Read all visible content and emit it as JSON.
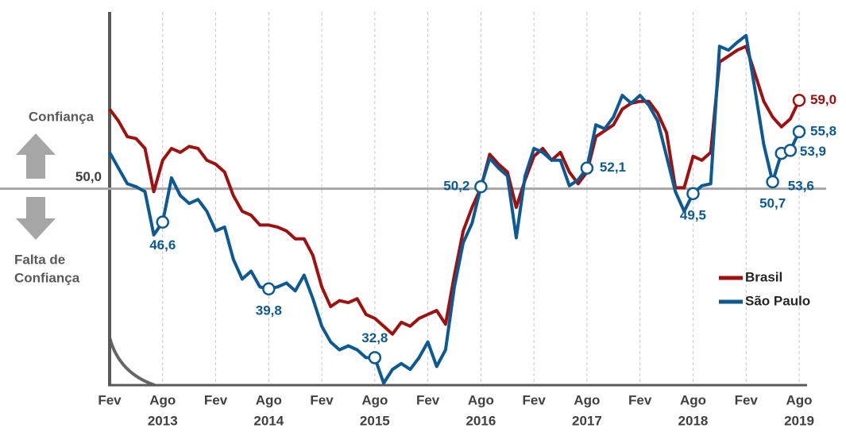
{
  "chart_data": {
    "type": "line",
    "categories": [
      "Fev",
      null,
      null,
      null,
      null,
      null,
      "Ago",
      null,
      null,
      null,
      null,
      null,
      "Fev",
      null,
      null,
      null,
      null,
      null,
      "Ago",
      null,
      null,
      null,
      null,
      null,
      "Fev",
      null,
      null,
      null,
      null,
      null,
      "Ago",
      null,
      null,
      null,
      null,
      null,
      "Fev",
      null,
      null,
      null,
      null,
      null,
      "Ago",
      null,
      null,
      null,
      null,
      null,
      "Fev",
      null,
      null,
      null,
      null,
      null,
      "Ago",
      null,
      null,
      null,
      null,
      null,
      "Fev",
      null,
      null,
      null,
      null,
      null,
      "Ago",
      null,
      null,
      null,
      null,
      null,
      "Fev",
      null,
      null,
      null,
      null,
      null,
      "Ago"
    ],
    "years": [
      "2013",
      "2014",
      "2015",
      "2016",
      "2017",
      "2018",
      "2019"
    ],
    "ylim": [
      30,
      68
    ],
    "reference": {
      "value": 50,
      "label": "50,0"
    },
    "side_labels": {
      "up": "Confiança",
      "down": [
        "Falta de",
        "Confiança"
      ]
    },
    "grid": true,
    "legend": "right",
    "series": [
      {
        "name": "Brasil",
        "color": "#a10f0f",
        "values": [
          58.1,
          56.9,
          55.3,
          55.1,
          54.1,
          49.7,
          52.9,
          54.1,
          53.7,
          54.3,
          54.1,
          52.9,
          52.5,
          51.7,
          49.3,
          47.7,
          47.3,
          46.3,
          46.3,
          46.1,
          45.7,
          44.9,
          44.9,
          43.2,
          40.0,
          38.0,
          38.6,
          38.4,
          38.8,
          37.2,
          36.8,
          36.0,
          35.2,
          36.4,
          36.0,
          36.8,
          37.2,
          37.6,
          36.2,
          41.2,
          45.7,
          48.1,
          50.1,
          53.5,
          52.5,
          51.7,
          48.1,
          50.9,
          53.3,
          54.1,
          52.9,
          53.7,
          51.7,
          50.5,
          51.7,
          55.3,
          55.9,
          56.5,
          58.1,
          58.7,
          58.9,
          58.9,
          57.7,
          55.7,
          50.1,
          50.1,
          53.3,
          52.9,
          53.7,
          62.9,
          63.5,
          64.1,
          64.5,
          61.7,
          58.9,
          57.3,
          56.3,
          57.1,
          59.0
        ],
        "value_labels": [
          null,
          null,
          null,
          null,
          null,
          null,
          null,
          null,
          null,
          null,
          null,
          null,
          null,
          null,
          null,
          null,
          null,
          null,
          null,
          null,
          null,
          null,
          null,
          null,
          null,
          null,
          null,
          null,
          null,
          null,
          null,
          null,
          null,
          null,
          null,
          null,
          null,
          null,
          null,
          null,
          null,
          null,
          null,
          null,
          null,
          null,
          null,
          null,
          null,
          null,
          null,
          null,
          null,
          null,
          null,
          null,
          null,
          null,
          null,
          null,
          null,
          null,
          null,
          null,
          null,
          null,
          null,
          null,
          null,
          null,
          null,
          null,
          null,
          null,
          null,
          null,
          null,
          null,
          "59,0"
        ]
      },
      {
        "name": "São Paulo",
        "color": "#0b5a94",
        "values": [
          53.7,
          52.1,
          50.5,
          50.2,
          49.7,
          45.3,
          46.6,
          51.1,
          49.3,
          48.5,
          48.9,
          47.7,
          45.7,
          46.1,
          42.8,
          40.8,
          41.6,
          40.0,
          39.8,
          40.0,
          40.4,
          39.6,
          41.2,
          38.8,
          36.0,
          34.4,
          33.6,
          34.0,
          33.6,
          32.8,
          32.8,
          30.2,
          31.6,
          32.2,
          31.6,
          32.8,
          34.4,
          31.9,
          33.6,
          40.0,
          44.5,
          46.5,
          50.2,
          53.1,
          52.1,
          51.3,
          45.0,
          51.3,
          54.1,
          53.7,
          52.9,
          52.9,
          50.3,
          50.9,
          52.1,
          56.5,
          56.1,
          57.3,
          59.5,
          58.7,
          59.5,
          58.5,
          56.9,
          53.3,
          49.7,
          47.7,
          49.5,
          50.3,
          50.5,
          64.5,
          64.1,
          64.9,
          65.6,
          60.1,
          54.5,
          50.7,
          53.6,
          53.9,
          55.8
        ],
        "value_labels": [
          null,
          null,
          null,
          null,
          null,
          null,
          "46,6",
          null,
          null,
          null,
          null,
          null,
          null,
          null,
          null,
          null,
          null,
          null,
          "39,8",
          null,
          null,
          null,
          null,
          null,
          null,
          null,
          null,
          null,
          null,
          null,
          "32,8",
          null,
          null,
          null,
          null,
          null,
          null,
          null,
          null,
          null,
          null,
          null,
          "50,2",
          null,
          null,
          null,
          null,
          null,
          null,
          null,
          null,
          null,
          null,
          null,
          "52,1",
          null,
          null,
          null,
          null,
          null,
          null,
          null,
          null,
          null,
          null,
          null,
          "49,5",
          null,
          null,
          null,
          null,
          null,
          null,
          null,
          null,
          "50,7",
          "53,6",
          "53,9",
          "55,8"
        ]
      }
    ]
  }
}
